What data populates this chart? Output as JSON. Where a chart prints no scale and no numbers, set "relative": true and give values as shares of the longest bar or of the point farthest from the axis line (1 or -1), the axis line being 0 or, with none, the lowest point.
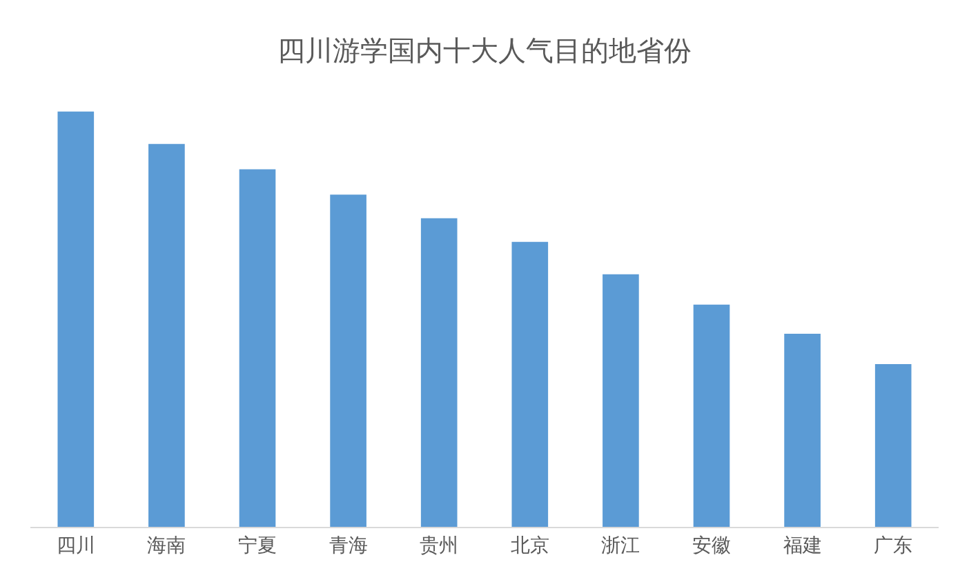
{
  "chart_data": {
    "type": "bar",
    "title": "四川游学国内十大人气目的地省份",
    "categories": [
      "四川",
      "海南",
      "宁夏",
      "青海",
      "贵州",
      "北京",
      "浙江",
      "安徽",
      "福建",
      "广东"
    ],
    "values": [
      1,
      0.922,
      0.861,
      0.8,
      0.743,
      0.686,
      0.608,
      0.535,
      0.465,
      0.392
    ],
    "color": "#5b9bd5",
    "relative": true,
    "grid": false,
    "legend": false
  }
}
